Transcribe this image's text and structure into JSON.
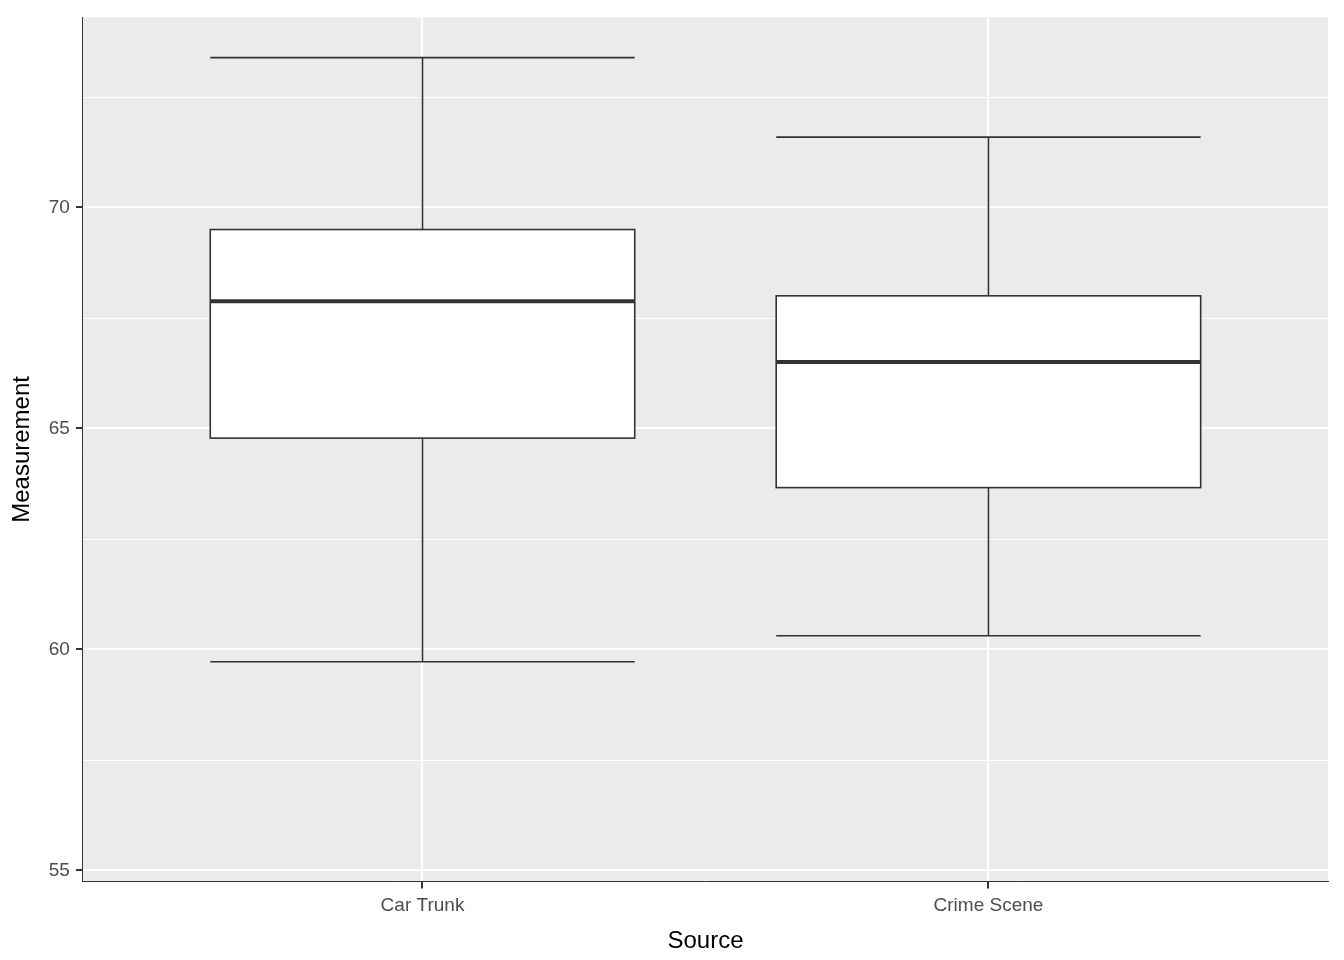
{
  "chart_data": {
    "type": "boxplot",
    "x_label": "Source",
    "y_label": "Measurement",
    "categories": [
      "Car Trunk",
      "Crime Scene"
    ],
    "boxes": [
      {
        "whisker_low": 59.72,
        "q1": 64.78,
        "median": 67.88,
        "q3": 69.5,
        "whisker_high": 73.39
      },
      {
        "whisker_low": 60.31,
        "q1": 63.66,
        "median": 66.5,
        "q3": 68.0,
        "whisker_high": 71.59
      }
    ],
    "color": "#ffffff",
    "ylim": [
      54.75,
      74.3
    ],
    "yticks": [
      55,
      60,
      65,
      70
    ],
    "grid": true
  }
}
